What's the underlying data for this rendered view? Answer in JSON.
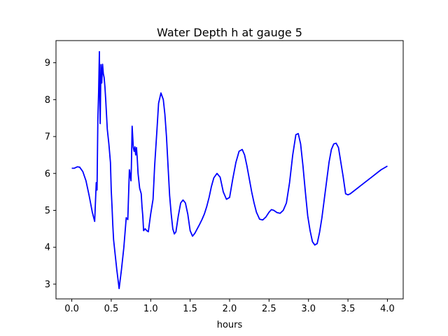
{
  "chart_data": {
    "type": "line",
    "title": "Water Depth h at gauge 5",
    "xlabel": "hours",
    "ylabel": "",
    "xlim": [
      -0.2,
      4.2
    ],
    "ylim": [
      2.6,
      9.6
    ],
    "grid": false,
    "xticks": [
      0.0,
      0.5,
      1.0,
      1.5,
      2.0,
      2.5,
      3.0,
      3.5,
      4.0
    ],
    "xtick_labels": [
      "0.0",
      "0.5",
      "1.0",
      "1.5",
      "2.0",
      "2.5",
      "3.0",
      "3.5",
      "4.0"
    ],
    "yticks": [
      3,
      4,
      5,
      6,
      7,
      8,
      9
    ],
    "ytick_labels": [
      "3",
      "4",
      "5",
      "6",
      "7",
      "8",
      "9"
    ],
    "series": [
      {
        "color": "#0000ff",
        "x": [
          0.0,
          0.03,
          0.07,
          0.1,
          0.14,
          0.18,
          0.22,
          0.26,
          0.29,
          0.31,
          0.32,
          0.33,
          0.34,
          0.35,
          0.355,
          0.36,
          0.37,
          0.38,
          0.39,
          0.4,
          0.41,
          0.42,
          0.43,
          0.44,
          0.45,
          0.47,
          0.49,
          0.5,
          0.51,
          0.52,
          0.53,
          0.55,
          0.57,
          0.6,
          0.63,
          0.66,
          0.69,
          0.71,
          0.73,
          0.75,
          0.755,
          0.765,
          0.78,
          0.79,
          0.8,
          0.81,
          0.82,
          0.83,
          0.84,
          0.86,
          0.88,
          0.89,
          0.9,
          0.91,
          0.93,
          0.95,
          0.97,
          1.0,
          1.03,
          1.05,
          1.08,
          1.1,
          1.13,
          1.16,
          1.18,
          1.2,
          1.22,
          1.24,
          1.26,
          1.28,
          1.3,
          1.32,
          1.35,
          1.38,
          1.41,
          1.44,
          1.47,
          1.5,
          1.53,
          1.56,
          1.59,
          1.62,
          1.65,
          1.68,
          1.71,
          1.74,
          1.77,
          1.8,
          1.84,
          1.88,
          1.92,
          1.96,
          2.0,
          2.04,
          2.08,
          2.12,
          2.16,
          2.19,
          2.22,
          2.25,
          2.28,
          2.31,
          2.34,
          2.38,
          2.42,
          2.46,
          2.5,
          2.53,
          2.56,
          2.6,
          2.64,
          2.68,
          2.72,
          2.76,
          2.8,
          2.84,
          2.87,
          2.9,
          2.93,
          2.96,
          2.99,
          3.02,
          3.05,
          3.08,
          3.11,
          3.14,
          3.17,
          3.2,
          3.23,
          3.26,
          3.29,
          3.32,
          3.35,
          3.38,
          3.41,
          3.44,
          3.47,
          3.5,
          3.53,
          3.56,
          3.59,
          3.62,
          3.65,
          3.68,
          3.71,
          3.74,
          3.77,
          3.8,
          3.83,
          3.86,
          3.89,
          3.92,
          3.96,
          4.0
        ],
        "y": [
          6.14,
          6.14,
          6.18,
          6.17,
          6.05,
          5.8,
          5.4,
          4.95,
          4.7,
          5.75,
          5.55,
          7.4,
          8.2,
          9.3,
          8.0,
          7.35,
          8.95,
          8.45,
          8.96,
          8.7,
          8.6,
          8.35,
          8.0,
          7.6,
          7.2,
          6.8,
          6.3,
          5.55,
          5.1,
          4.6,
          4.2,
          3.8,
          3.4,
          2.88,
          3.4,
          4.0,
          4.8,
          4.75,
          6.1,
          5.8,
          6.15,
          7.28,
          6.7,
          6.6,
          6.72,
          6.5,
          6.7,
          6.4,
          6.0,
          5.6,
          5.45,
          5.1,
          4.85,
          4.45,
          4.5,
          4.45,
          4.42,
          4.9,
          5.3,
          6.2,
          7.2,
          7.9,
          8.18,
          8.0,
          7.6,
          7.0,
          6.2,
          5.4,
          4.9,
          4.5,
          4.36,
          4.42,
          4.85,
          5.2,
          5.28,
          5.2,
          4.9,
          4.45,
          4.3,
          4.38,
          4.5,
          4.62,
          4.75,
          4.9,
          5.1,
          5.35,
          5.65,
          5.88,
          6.0,
          5.9,
          5.5,
          5.3,
          5.35,
          5.85,
          6.3,
          6.6,
          6.65,
          6.5,
          6.2,
          5.85,
          5.5,
          5.2,
          4.95,
          4.76,
          4.74,
          4.82,
          4.95,
          5.02,
          5.0,
          4.94,
          4.92,
          5.0,
          5.2,
          5.75,
          6.5,
          7.05,
          7.08,
          6.8,
          6.2,
          5.5,
          4.85,
          4.45,
          4.15,
          4.06,
          4.1,
          4.4,
          4.8,
          5.3,
          5.8,
          6.3,
          6.65,
          6.8,
          6.82,
          6.7,
          6.3,
          5.9,
          5.45,
          5.42,
          5.45,
          5.5,
          5.55,
          5.6,
          5.65,
          5.7,
          5.75,
          5.8,
          5.85,
          5.9,
          5.95,
          6.0,
          6.05,
          6.1,
          6.15,
          6.2
        ]
      }
    ]
  }
}
